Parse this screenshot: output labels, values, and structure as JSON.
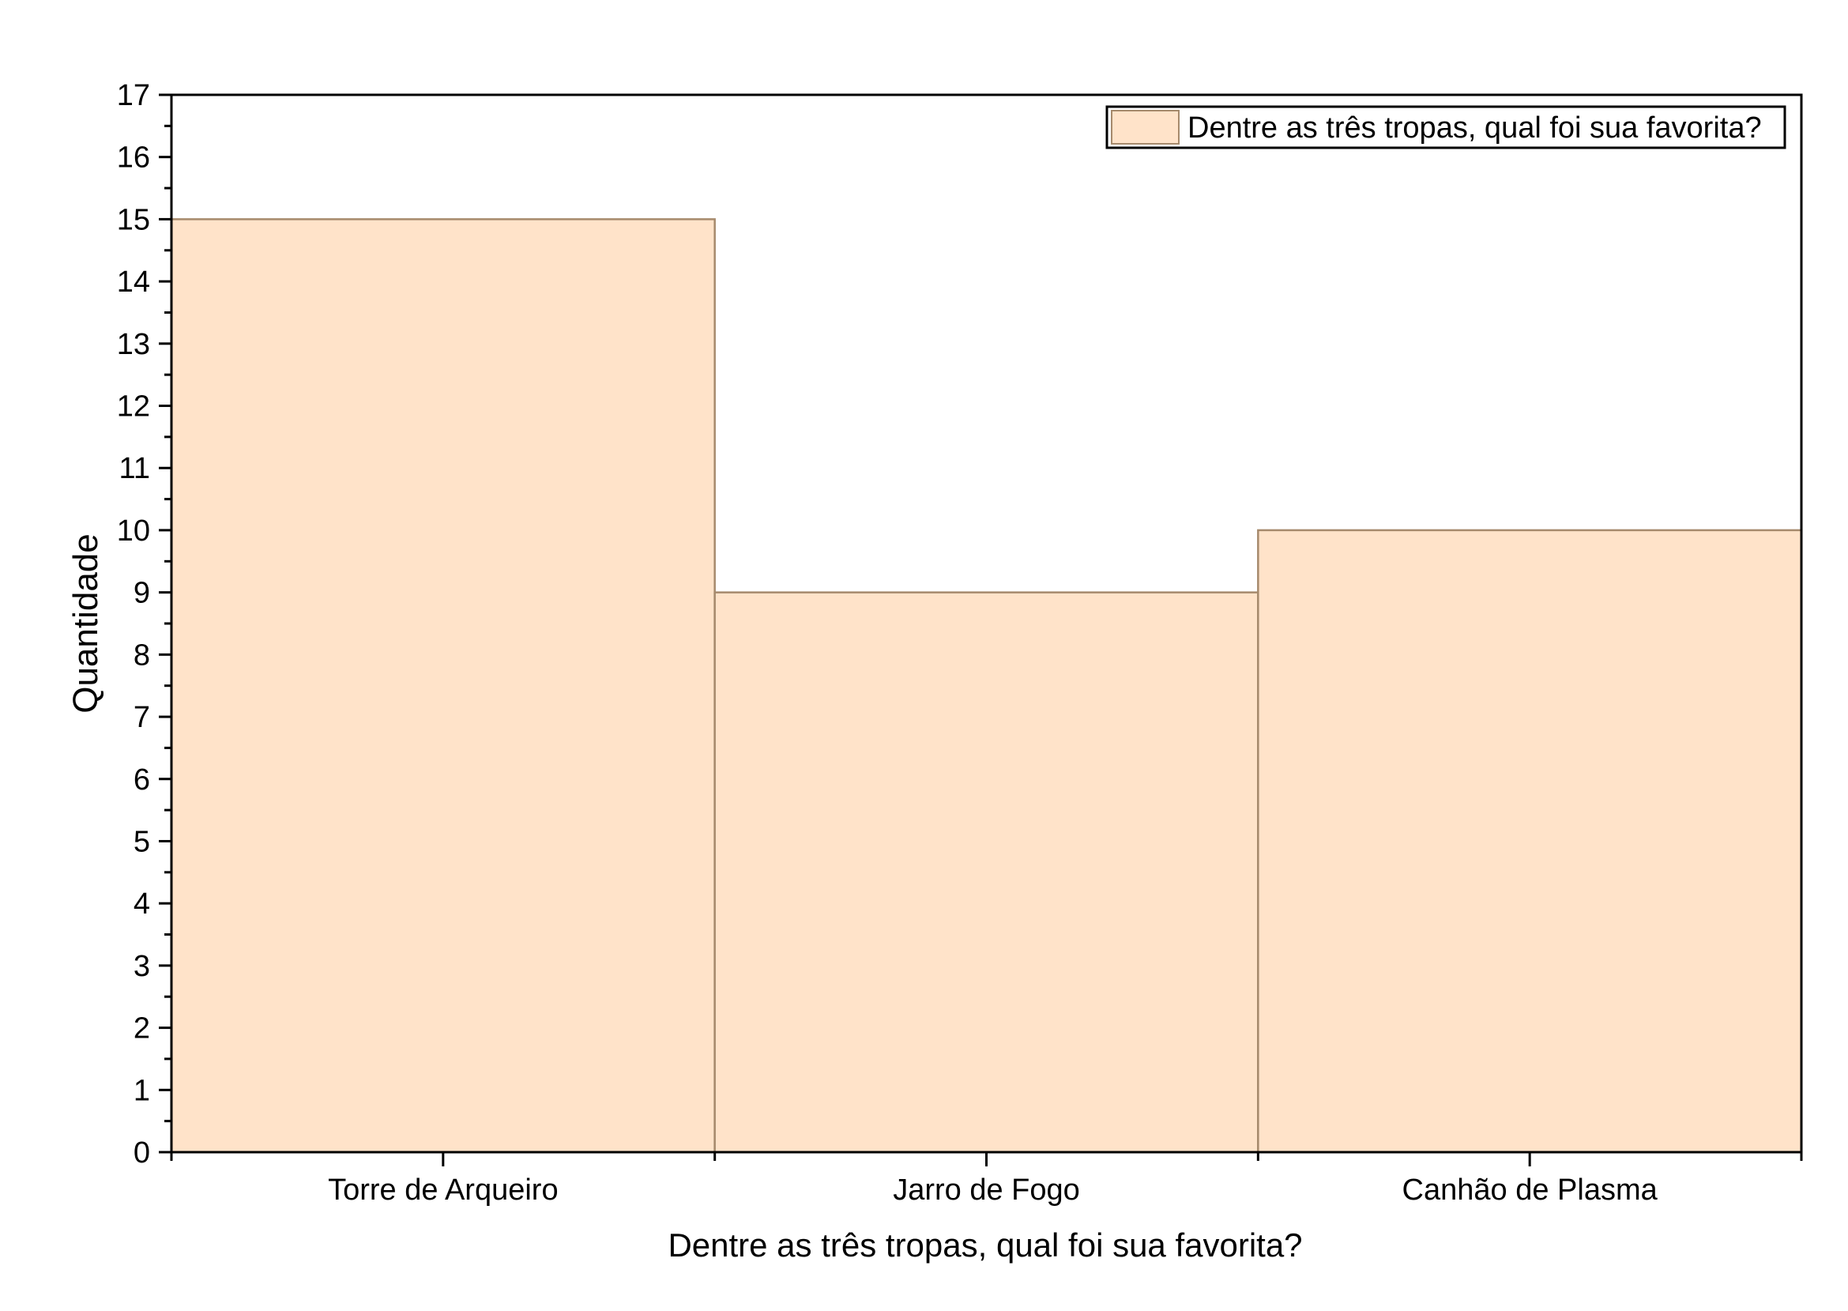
{
  "chart_data": {
    "type": "bar",
    "title": "",
    "xlabel": "Dentre as três tropas, qual foi sua favorita?",
    "ylabel": "Quantidade",
    "categories": [
      "Torre de Arqueiro",
      "Jarro de Fogo",
      "Canhão de Plasma"
    ],
    "series": [
      {
        "name": "Dentre as três tropas, qual foi sua favorita?",
        "values": [
          15,
          9,
          10
        ]
      }
    ],
    "ylim": [
      0,
      17
    ],
    "y_ticks": [
      "0",
      "1",
      "2",
      "3",
      "4",
      "5",
      "6",
      "7",
      "8",
      "9",
      "10",
      "11",
      "12",
      "13",
      "14",
      "15",
      "16",
      "17"
    ],
    "grid": false,
    "legend_position": "top-right",
    "bar_fill_color": "#ffe3c9",
    "bar_edge_color": "#a68a6c"
  }
}
